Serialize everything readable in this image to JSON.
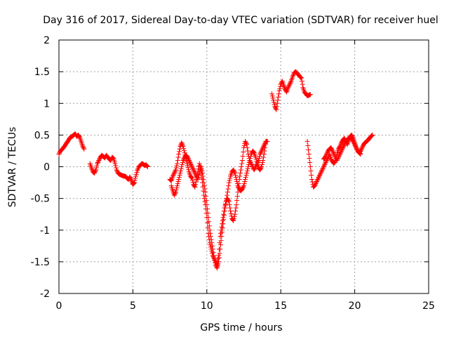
{
  "chart_data": {
    "type": "scatter",
    "title": "Day 316 of 2017, Sidereal Day-to-day VTEC variation (SDTVAR) for receiver huel",
    "xlabel": "GPS time / hours",
    "ylabel": "SDTVAR / TECUs",
    "xlim": [
      0,
      25
    ],
    "ylim": [
      -2,
      2
    ],
    "xticks": [
      0,
      5,
      10,
      15,
      20,
      25
    ],
    "xtick_labels": [
      "0",
      "5",
      "10",
      "15",
      "20",
      "25"
    ],
    "yticks": [
      2,
      1.5,
      1,
      0.5,
      0,
      -0.5,
      -1,
      -1.5,
      -2
    ],
    "ytick_labels": [
      "2",
      "1.5",
      "1",
      "0.5",
      "0",
      "-0.5",
      "-1",
      "-1.5",
      "-2"
    ],
    "grid": true,
    "marker": "plus",
    "color": "#ff0000",
    "series": [
      {
        "name": "segment-1",
        "x": [
          0.0,
          0.1,
          0.2,
          0.3,
          0.4,
          0.5,
          0.6,
          0.7,
          0.8,
          0.9,
          1.0,
          1.1,
          1.2,
          1.3,
          1.4,
          1.5,
          1.6,
          1.7
        ],
        "y": [
          0.2,
          0.25,
          0.27,
          0.3,
          0.33,
          0.37,
          0.4,
          0.44,
          0.47,
          0.48,
          0.5,
          0.52,
          0.48,
          0.5,
          0.47,
          0.4,
          0.33,
          0.28
        ]
      },
      {
        "name": "segment-2",
        "x": [
          2.1,
          2.2,
          2.3,
          2.4,
          2.5,
          2.6,
          2.7,
          2.8,
          2.9,
          3.0,
          3.1,
          3.2,
          3.3,
          3.4,
          3.5,
          3.6,
          3.7,
          3.8,
          3.9,
          4.0,
          4.1,
          4.2,
          4.3,
          4.4,
          4.5,
          4.6,
          4.7,
          4.8,
          4.9,
          5.0,
          5.1,
          5.2,
          5.3,
          5.4,
          5.5,
          5.6,
          5.7,
          5.8,
          5.9,
          6.0,
          6.1,
          6.2,
          6.3,
          6.4,
          6.5,
          6.6,
          6.7,
          6.8,
          6.9,
          7.0,
          7.1,
          7.2,
          7.3,
          7.4,
          7.5,
          7.6,
          7.7,
          7.8,
          7.9,
          8.0,
          8.1,
          8.2,
          8.3,
          8.4,
          8.5,
          8.6,
          8.7,
          8.8,
          8.9,
          9.0,
          9.1,
          9.2,
          9.3,
          9.4,
          9.5,
          9.6,
          9.7,
          9.8,
          9.9,
          10.0,
          10.1,
          10.2,
          10.3,
          10.4,
          10.5,
          10.6,
          10.7,
          10.8,
          10.9,
          11.0,
          11.1,
          11.2,
          11.3,
          11.4,
          11.5,
          11.6,
          11.7,
          11.8,
          11.9,
          12.0,
          12.1,
          12.2,
          12.3,
          12.4,
          12.5,
          12.6,
          12.7,
          12.8,
          12.9,
          13.0,
          13.1,
          13.2,
          13.3,
          13.4,
          13.5,
          13.6,
          13.7,
          13.8,
          13.9,
          14.0,
          14.1
        ],
        "y": [
          0.05,
          -0.02,
          -0.08,
          -0.1,
          -0.05,
          0.05,
          0.1,
          0.15,
          0.18,
          0.16,
          0.14,
          0.18,
          0.15,
          0.12,
          0.1,
          0.15,
          0.13,
          0.05,
          -0.05,
          -0.1,
          -0.12,
          -0.13,
          -0.14,
          -0.15,
          -0.15,
          -0.18,
          -0.2,
          -0.16,
          -0.22,
          -0.28,
          -0.25,
          -0.15,
          -0.06,
          0.0,
          0.02,
          0.05,
          0.04,
          0.02,
          0.03,
          0.0,
          null,
          null,
          null,
          null,
          null,
          null,
          null,
          null,
          null,
          null,
          null,
          null,
          null,
          null,
          -0.2,
          -0.22,
          -0.15,
          -0.1,
          -0.05,
          0.05,
          0.2,
          0.32,
          0.38,
          0.32,
          0.22,
          0.12,
          0.02,
          -0.08,
          -0.15,
          -0.18,
          -0.28,
          -0.32,
          -0.2,
          -0.08,
          0.05,
          -0.05,
          -0.25,
          -0.45,
          -0.6,
          -0.8,
          -1.05,
          -1.2,
          -1.3,
          -1.4,
          -1.45,
          -1.5,
          -1.55,
          -1.4,
          -1.1,
          -0.95,
          -0.8,
          -0.65,
          -0.55,
          -0.5,
          -0.55,
          -0.7,
          -0.82,
          -0.85,
          -0.75,
          -0.6,
          -0.4,
          -0.2,
          -0.05,
          0.1,
          0.3,
          0.4,
          0.35,
          0.2,
          0.1,
          0.05,
          0.0,
          -0.05,
          0.0,
          0.05,
          0.1,
          0.2,
          0.25,
          0.3,
          0.35,
          0.4,
          0.4
        ]
      },
      {
        "name": "segment-3",
        "x": [
          7.6,
          7.7,
          7.8,
          7.9,
          8.0,
          8.1,
          8.2,
          8.3,
          8.4,
          8.5,
          8.6,
          8.7,
          8.8,
          8.9,
          9.0,
          9.1,
          9.2,
          9.3,
          9.4,
          9.5,
          9.6,
          9.7,
          9.8,
          9.9,
          10.0,
          10.1,
          10.2,
          10.3,
          10.4,
          10.5,
          10.6,
          10.7,
          10.8,
          10.9,
          11.0,
          11.1,
          11.2,
          11.3,
          11.4,
          11.5,
          11.6,
          11.7,
          11.8,
          11.9,
          12.0,
          12.1,
          12.2,
          12.3,
          12.4,
          12.5,
          12.6,
          12.7,
          12.8,
          12.9,
          13.0,
          13.1,
          13.2,
          13.3,
          13.4,
          13.5,
          13.6,
          13.7,
          13.8,
          13.9,
          14.0
        ],
        "y": [
          -0.3,
          -0.38,
          -0.45,
          -0.4,
          -0.3,
          -0.2,
          -0.1,
          0.0,
          0.1,
          0.15,
          0.18,
          0.15,
          0.1,
          0.05,
          0.0,
          -0.05,
          -0.1,
          -0.15,
          -0.2,
          -0.1,
          0.0,
          -0.1,
          -0.25,
          -0.4,
          -0.6,
          -0.8,
          -1.0,
          -1.15,
          -1.3,
          -1.45,
          -1.55,
          -1.6,
          -1.5,
          -1.3,
          -1.1,
          -0.9,
          -0.7,
          -0.55,
          -0.4,
          -0.25,
          -0.15,
          -0.08,
          -0.05,
          -0.1,
          -0.2,
          -0.3,
          -0.35,
          -0.38,
          -0.35,
          -0.3,
          -0.2,
          -0.1,
          0.0,
          0.1,
          0.2,
          0.25,
          0.22,
          0.15,
          0.05,
          -0.02,
          -0.05,
          0.0,
          0.1,
          0.25,
          0.4
        ]
      },
      {
        "name": "segment-4",
        "x": [
          14.4,
          14.5,
          14.6,
          14.7,
          14.8,
          14.9,
          15.0,
          15.1,
          15.2,
          15.3,
          15.4,
          15.5,
          15.6,
          15.7,
          15.8,
          15.9,
          16.0,
          16.1,
          16.2,
          16.3,
          16.4,
          16.5,
          16.6,
          16.7,
          16.8,
          16.9,
          17.0
        ],
        "y": [
          1.15,
          1.05,
          0.95,
          0.9,
          1.05,
          1.2,
          1.3,
          1.35,
          1.28,
          1.22,
          1.18,
          1.25,
          1.3,
          1.35,
          1.42,
          1.48,
          1.5,
          1.48,
          1.45,
          1.42,
          1.4,
          1.25,
          1.18,
          1.15,
          1.12,
          1.13,
          1.14
        ]
      },
      {
        "name": "segment-5",
        "x": [
          16.8,
          16.9,
          17.0,
          17.1,
          17.2,
          17.3,
          17.4,
          17.5,
          17.6,
          17.7,
          17.8,
          17.9,
          18.0,
          18.1,
          18.2,
          18.3,
          18.4,
          18.5,
          18.6,
          18.7,
          18.8,
          18.9,
          19.0,
          19.1,
          19.2,
          19.3,
          19.4,
          19.5,
          19.6,
          19.7,
          19.8,
          19.9,
          20.0,
          20.1,
          20.2,
          20.3,
          20.4,
          20.5,
          20.6,
          20.7,
          20.8,
          20.9,
          21.0,
          21.1,
          21.2
        ],
        "y": [
          0.4,
          0.2,
          0.0,
          -0.2,
          -0.32,
          -0.3,
          -0.25,
          -0.2,
          -0.15,
          -0.1,
          -0.05,
          0.0,
          0.05,
          0.1,
          0.15,
          0.2,
          0.12,
          0.08,
          0.05,
          0.1,
          0.2,
          0.28,
          0.32,
          0.38,
          0.42,
          0.45,
          0.4,
          0.35,
          0.42,
          0.48,
          0.5,
          0.45,
          0.38,
          0.3,
          0.25,
          0.22,
          0.25,
          0.3,
          0.35,
          0.38,
          0.4,
          0.42,
          0.45,
          0.48,
          0.5
        ]
      },
      {
        "name": "segment-6",
        "x": [
          17.9,
          18.0,
          18.1,
          18.2,
          18.3,
          18.4,
          18.5,
          18.6,
          18.7,
          18.8,
          18.9,
          19.0,
          19.1,
          19.2,
          19.3,
          19.4,
          19.5,
          19.6,
          19.7,
          19.8,
          19.9,
          20.0,
          20.1,
          20.2,
          20.3,
          20.4
        ],
        "y": [
          0.12,
          0.15,
          0.2,
          0.25,
          0.28,
          0.3,
          0.25,
          0.2,
          0.15,
          0.1,
          0.15,
          0.2,
          0.25,
          0.3,
          0.35,
          0.4,
          0.42,
          0.45,
          0.48,
          0.44,
          0.4,
          0.35,
          0.3,
          0.25,
          0.22,
          0.2
        ]
      }
    ]
  }
}
